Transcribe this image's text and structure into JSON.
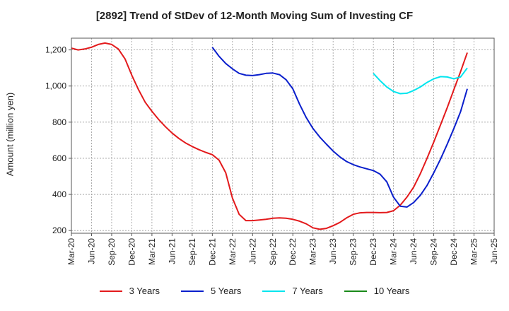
{
  "chart_data": {
    "type": "line",
    "title": "[2892]  Trend of StDev of 12-Month Moving Sum of Investing CF",
    "xlabel": "",
    "ylabel": "Amount (million yen)",
    "ylim": [
      185,
      1265
    ],
    "yticks": [
      200,
      400,
      600,
      800,
      1000,
      1200
    ],
    "ytick_labels": [
      "200",
      "400",
      "600",
      "800",
      "1,000",
      "1,200"
    ],
    "xticks": [
      "Mar-20",
      "Jun-20",
      "Sep-20",
      "Dec-20",
      "Mar-21",
      "Jun-21",
      "Sep-21",
      "Dec-21",
      "Mar-22",
      "Jun-22",
      "Sep-22",
      "Dec-22",
      "Mar-23",
      "Jun-23",
      "Sep-23",
      "Dec-23",
      "Mar-24",
      "Jun-24",
      "Sep-24",
      "Dec-24",
      "Mar-25",
      "Jun-25"
    ],
    "grid": true,
    "legend_position": "bottom",
    "series": [
      {
        "name": "3 Years",
        "color": "#e31a1c",
        "values": [
          1210,
          1200,
          1205,
          1215,
          1230,
          1238,
          1230,
          1205,
          1150,
          1060,
          980,
          910,
          860,
          815,
          775,
          740,
          710,
          685,
          665,
          648,
          633,
          620,
          590,
          520,
          380,
          290,
          255,
          255,
          258,
          262,
          268,
          270,
          268,
          262,
          252,
          237,
          215,
          207,
          212,
          227,
          245,
          270,
          290,
          298,
          300,
          300,
          299,
          300,
          310,
          340,
          385,
          440,
          515,
          600,
          690,
          785,
          880,
          980,
          1080,
          1185
        ]
      },
      {
        "name": "5 Years",
        "color": "#0a1fcc",
        "values": [
          null,
          null,
          null,
          null,
          null,
          null,
          null,
          null,
          null,
          null,
          null,
          null,
          null,
          null,
          null,
          null,
          null,
          null,
          null,
          null,
          null,
          1215,
          1165,
          1125,
          1095,
          1070,
          1060,
          1058,
          1063,
          1070,
          1072,
          1063,
          1035,
          985,
          900,
          825,
          765,
          718,
          678,
          640,
          608,
          582,
          565,
          552,
          542,
          532,
          512,
          470,
          385,
          335,
          330,
          355,
          395,
          450,
          520,
          595,
          678,
          765,
          858,
          985
        ]
      },
      {
        "name": "7 Years",
        "color": "#00e5ee",
        "values": [
          null,
          null,
          null,
          null,
          null,
          null,
          null,
          null,
          null,
          null,
          null,
          null,
          null,
          null,
          null,
          null,
          null,
          null,
          null,
          null,
          null,
          null,
          null,
          null,
          null,
          null,
          null,
          null,
          null,
          null,
          null,
          null,
          null,
          null,
          null,
          null,
          null,
          null,
          null,
          null,
          null,
          null,
          null,
          null,
          null,
          1070,
          1030,
          995,
          970,
          958,
          960,
          975,
          995,
          1020,
          1040,
          1052,
          1050,
          1040,
          1050,
          1100
        ]
      },
      {
        "name": "10 Years",
        "color": "#1a8a1a",
        "values": []
      }
    ]
  }
}
